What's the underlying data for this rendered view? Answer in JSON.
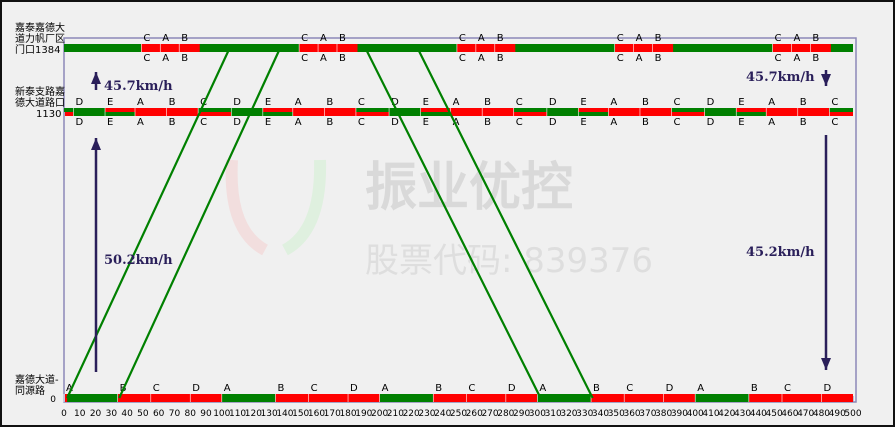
{
  "watermark": {
    "brand": "振业优控",
    "stock": "股票代码: 839376"
  },
  "axis": {
    "x_min": 0,
    "x_max": 500,
    "x_step": 10,
    "y_origin_label": "0"
  },
  "intersections": [
    {
      "name_lines": [
        "嘉泰嘉德大",
        "道力帆厂区",
        "门口1384"
      ],
      "distance": 1384,
      "cycle": 100,
      "phases": [
        {
          "label": "C",
          "start": 49
        },
        {
          "label": "A",
          "start": 61
        },
        {
          "label": "B",
          "start": 73
        }
      ],
      "upper_green": [
        [
          0,
          49
        ],
        [
          86,
          149
        ],
        [
          186,
          249
        ],
        [
          286,
          349
        ],
        [
          386,
          449
        ],
        [
          486,
          500
        ]
      ],
      "lower_green": [
        [
          0,
          49
        ],
        [
          86,
          149
        ],
        [
          186,
          249
        ],
        [
          286,
          349
        ],
        [
          386,
          449
        ],
        [
          486,
          500
        ]
      ]
    },
    {
      "name_lines": [
        "新泰支路嘉",
        "德大道路口",
        "1130"
      ],
      "distance": 1130,
      "cycle": 100,
      "phases": [
        {
          "label": "D",
          "start": 6
        },
        {
          "label": "E",
          "start": 26
        },
        {
          "label": "A",
          "start": 45
        },
        {
          "label": "B",
          "start": 65
        },
        {
          "label": "C",
          "start": 85
        }
      ],
      "upper_green": [
        [
          0,
          26
        ],
        [
          85,
          126
        ],
        [
          185,
          226
        ],
        [
          285,
          326
        ],
        [
          385,
          426
        ],
        [
          485,
          500
        ]
      ],
      "lower_green": [
        [
          6,
          45
        ],
        [
          106,
          145
        ],
        [
          206,
          245
        ],
        [
          306,
          345
        ],
        [
          406,
          445
        ]
      ]
    },
    {
      "name_lines": [
        "嘉德大道-",
        "同源路"
      ],
      "distance": 0,
      "cycle": 100,
      "phases": [
        {
          "label": "A",
          "start": 0
        },
        {
          "label": "B",
          "start": 34
        },
        {
          "label": "C",
          "start": 55
        },
        {
          "label": "D",
          "start": 80
        }
      ],
      "upper_green": [
        [
          2,
          34
        ],
        [
          100,
          134
        ],
        [
          200,
          234
        ],
        [
          300,
          334
        ],
        [
          400,
          434
        ]
      ],
      "lower_green": [
        [
          2,
          34
        ],
        [
          100,
          134
        ],
        [
          200,
          234
        ],
        [
          300,
          334
        ],
        [
          400,
          434
        ]
      ]
    }
  ],
  "trajectories": [
    {
      "t0": 2,
      "d0": 0,
      "t1": 105,
      "d1": 1384
    },
    {
      "t0": 35,
      "d0": 0,
      "t1": 137,
      "d1": 1384
    },
    {
      "t0": 191,
      "d0": 1384,
      "t1": 302,
      "d1": 0
    },
    {
      "t0": 224,
      "d0": 1384,
      "t1": 335,
      "d1": 0
    }
  ],
  "speeds": {
    "north_upper": "45.7km/h",
    "north_lower": "50.2km/h",
    "south_upper": "45.7km/h",
    "south_lower": "45.2km/h"
  },
  "colors": {
    "green": "#008000",
    "red": "#ff0000",
    "frame": "#8c88b8",
    "arrow": "#2a1f5a"
  }
}
